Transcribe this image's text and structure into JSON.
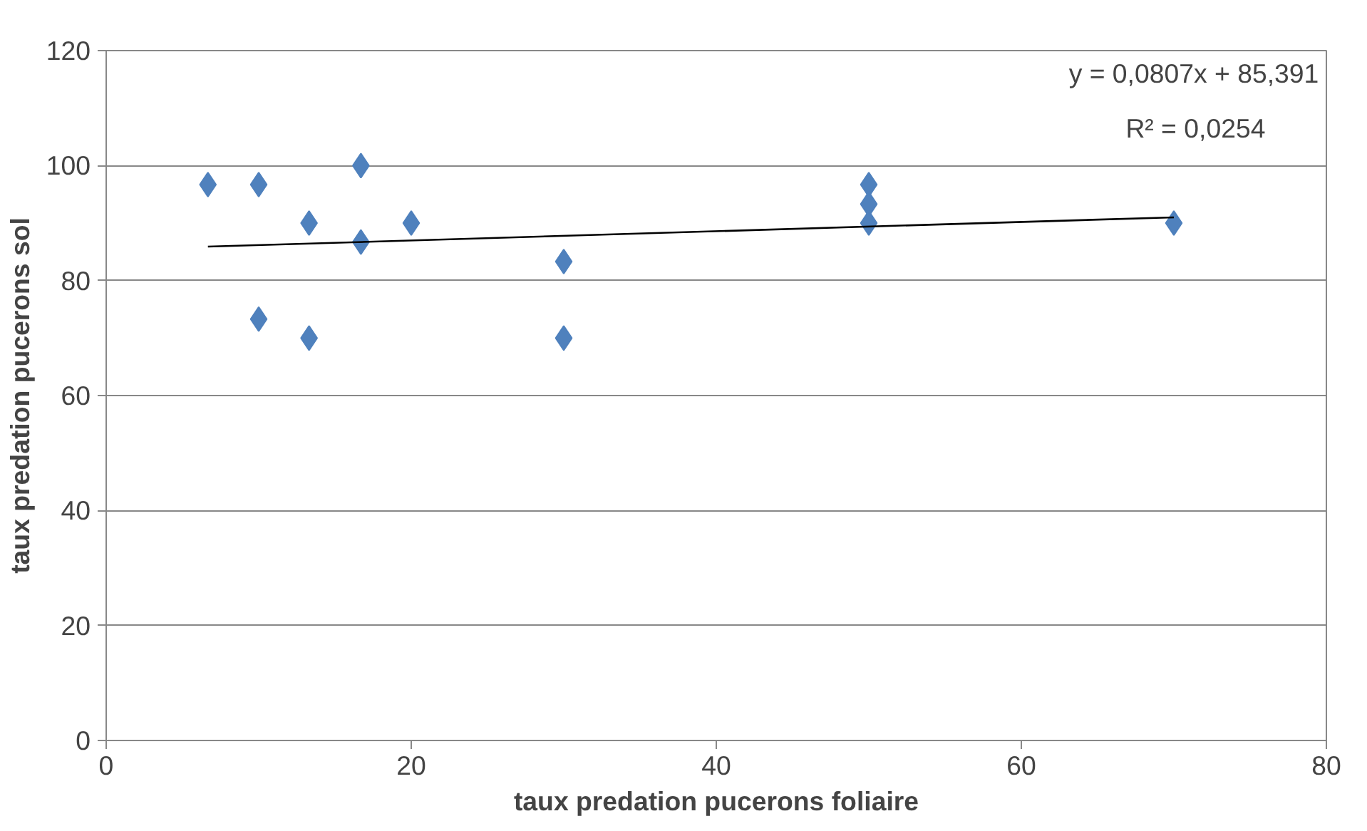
{
  "chart_data": {
    "type": "scatter",
    "xlabel": "taux predation pucerons foliaire",
    "ylabel": "taux predation pucerons sol",
    "xlim": [
      0,
      80
    ],
    "xticks": [
      0,
      20,
      40,
      60,
      80
    ],
    "ylim": [
      0,
      120
    ],
    "yticks": [
      0,
      20,
      40,
      60,
      80,
      100,
      120
    ],
    "grid": "y",
    "marker": "diamond",
    "annotations": [
      "y = 0,0807x + 85,391",
      "R² = 0,0254"
    ],
    "series": [
      {
        "color": "#4f81bd",
        "x": [
          6.67,
          10,
          10,
          13.3,
          13.3,
          16.7,
          16.7,
          20,
          30,
          30,
          50,
          50,
          50,
          70
        ],
        "values": [
          96.7,
          96.7,
          73.3,
          90,
          70,
          100,
          86.7,
          90,
          83.3,
          70,
          96.7,
          93.3,
          90,
          90
        ]
      },
      {
        "type": "line",
        "color": "#000000",
        "marker": "none",
        "x": [
          6.67,
          70
        ],
        "values": [
          85.9,
          91.0
        ]
      }
    ]
  }
}
